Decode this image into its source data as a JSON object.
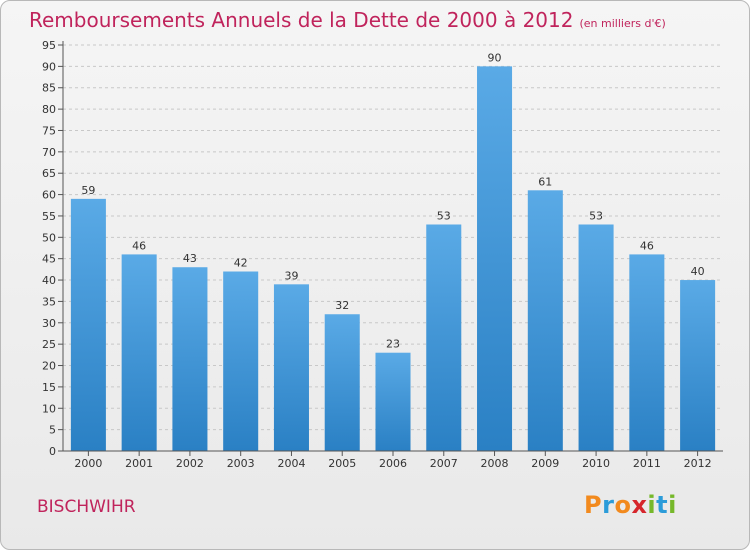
{
  "title": "Remboursements Annuels de la Dette de 2000 à 2012",
  "unit_note": "(en milliers d'€)",
  "commune": "BISCHWIHR",
  "logo": {
    "text": "Proxiti",
    "letters": [
      {
        "ch": "P",
        "color": "#f28a1e"
      },
      {
        "ch": "r",
        "color": "#2c9cd9"
      },
      {
        "ch": "o",
        "color": "#f28a1e"
      },
      {
        "ch": "x",
        "color": "#d6262c"
      },
      {
        "ch": "i",
        "color": "#76b82a"
      },
      {
        "ch": "t",
        "color": "#2c9cd9"
      },
      {
        "ch": "i",
        "color": "#76b82a"
      }
    ]
  },
  "colors": {
    "bar_light": "#5aaae6",
    "bar_dark": "#2a80c4",
    "grid": "#c8c8c8",
    "axis": "#555555",
    "title": "#c0245c"
  },
  "chart_data": {
    "type": "bar",
    "title": "Remboursements Annuels de la Dette de 2000 à 2012",
    "xlabel": "",
    "ylabel": "",
    "categories": [
      "2000",
      "2001",
      "2002",
      "2003",
      "2004",
      "2005",
      "2006",
      "2007",
      "2008",
      "2009",
      "2010",
      "2011",
      "2012"
    ],
    "values": [
      59,
      46,
      43,
      42,
      39,
      32,
      23,
      53,
      90,
      61,
      53,
      46,
      40
    ],
    "ylim": [
      0,
      95
    ],
    "yticks": [
      0,
      5,
      10,
      15,
      20,
      25,
      30,
      35,
      40,
      45,
      50,
      55,
      60,
      65,
      70,
      75,
      80,
      85,
      90,
      95
    ],
    "grid": true,
    "legend": "none"
  }
}
